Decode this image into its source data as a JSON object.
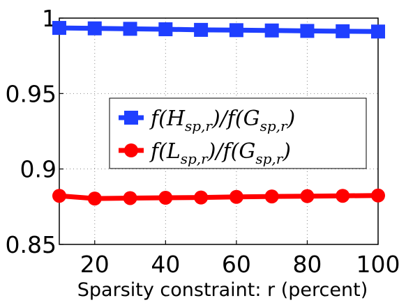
{
  "chart_data": {
    "type": "line",
    "title": "",
    "xlabel": "Sparsity constraint:  r (percent)",
    "ylabel": "",
    "x": [
      10,
      20,
      30,
      40,
      50,
      60,
      70,
      80,
      90,
      100
    ],
    "xlim": [
      10,
      100
    ],
    "ylim": [
      0.85,
      1.0
    ],
    "xticks": [
      20,
      40,
      60,
      80,
      100
    ],
    "xtick_labels": [
      "20",
      "40",
      "60",
      "80",
      "100"
    ],
    "yticks": [
      0.85,
      0.9,
      0.95,
      1.0
    ],
    "ytick_labels": [
      "0.85",
      "0.9",
      "0.95",
      "1"
    ],
    "grid": "dotted",
    "legend_position": "center-right",
    "series": [
      {
        "name": "f(H_{sp,r})/f(G_{sp,r})",
        "legend_parts": {
          "f1": "f(",
          "s1": "H",
          "sub1": "sp,r",
          "mid": ")/f(",
          "s2": "G",
          "sub2": "sp,r",
          "end": ")"
        },
        "color": "#1f3fff",
        "marker": "square",
        "values": [
          0.9935,
          0.9932,
          0.9929,
          0.9926,
          0.9922,
          0.992,
          0.9918,
          0.9915,
          0.9913,
          0.9911
        ]
      },
      {
        "name": "f(L_{sp,r})/f(G_{sp,r})",
        "legend_parts": {
          "f1": "f(",
          "s1": "L",
          "sub1": "sp,r",
          "mid": ")/f(",
          "s2": "G",
          "sub2": "sp,r",
          "end": ")"
        },
        "color": "#ff0000",
        "marker": "circle",
        "values": [
          0.8822,
          0.8804,
          0.8807,
          0.8809,
          0.8811,
          0.8815,
          0.8818,
          0.882,
          0.8822,
          0.8824
        ]
      }
    ]
  }
}
